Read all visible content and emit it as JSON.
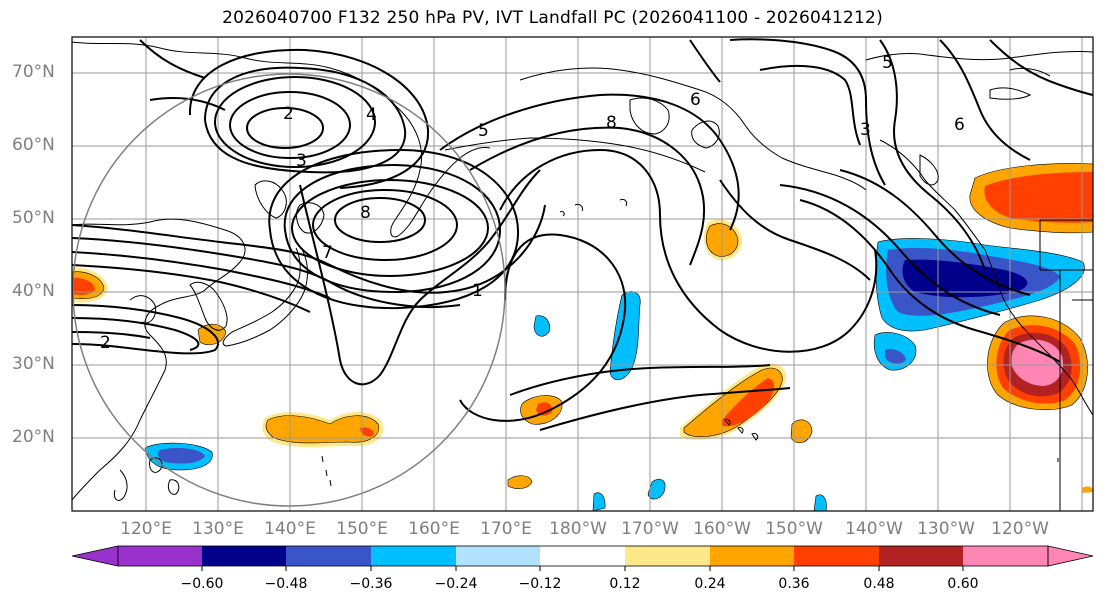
{
  "title": "2026040700 F132 250 hPa PV, IVT Landfall PC (2026041100 - 2026041212)",
  "lat_labels": [
    "70°N",
    "60°N",
    "50°N",
    "40°N",
    "30°N",
    "20°N"
  ],
  "lon_labels": [
    "120°E",
    "130°E",
    "140°E",
    "150°E",
    "160°E",
    "170°E",
    "180°W",
    "170°W",
    "160°W",
    "150°W",
    "140°W",
    "130°W",
    "120°W"
  ],
  "contour_labels": [
    "2",
    "3",
    "4",
    "5",
    "5",
    "6",
    "6",
    "7",
    "8",
    "8",
    "1",
    "2",
    "3"
  ],
  "colorbar": {
    "ticks": [
      "−0.60",
      "−0.48",
      "−0.36",
      "−0.24",
      "−0.12",
      "0.12",
      "0.24",
      "0.36",
      "0.48",
      "0.60"
    ],
    "colors": [
      "#9932cc",
      "#00008b",
      "#3a55c8",
      "#00bfff",
      "#b0e2ff",
      "#ffffff",
      "#ffe88a",
      "#ffa500",
      "#ff4000",
      "#b22222",
      "#ff85b3"
    ]
  },
  "colors": {
    "neg_strong": "#00008b",
    "neg_mid": "#3a55c8",
    "neg_weak": "#00bfff",
    "neg_faint": "#b0e2ff",
    "pos_faint": "#ffe88a",
    "pos_weak": "#ffa500",
    "pos_mid": "#ff4000",
    "pos_strong": "#b22222",
    "pos_max": "#ff85b3"
  }
}
